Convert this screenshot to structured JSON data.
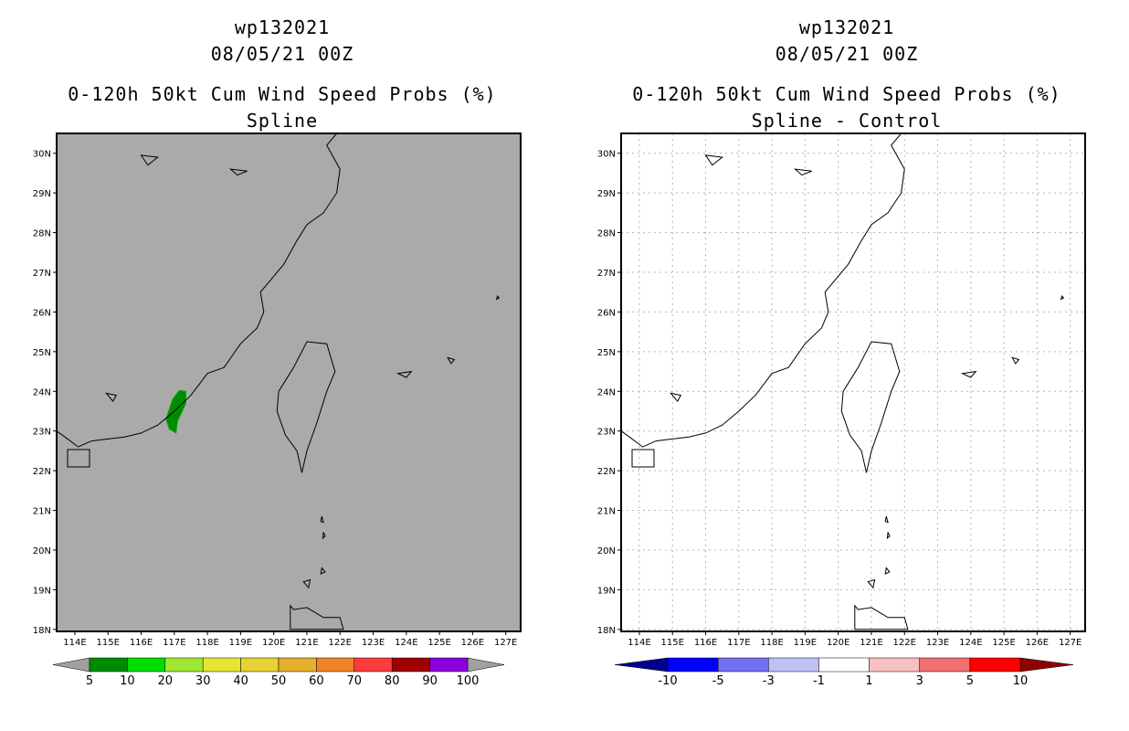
{
  "left": {
    "storm_id": "wp132021",
    "datetime": "08/05/21 00Z",
    "title": "0-120h 50kt Cum Wind Speed Probs (%)",
    "subtitle": "Spline",
    "lat_labels": [
      "30N",
      "29N",
      "28N",
      "27N",
      "26N",
      "25N",
      "24N",
      "23N",
      "22N",
      "21N",
      "20N",
      "19N",
      "18N"
    ],
    "lon_labels": [
      "114E",
      "115E",
      "116E",
      "117E",
      "118E",
      "119E",
      "120E",
      "121E",
      "122E",
      "123E",
      "124E",
      "125E",
      "126E",
      "127E"
    ],
    "colorbar": {
      "colors": [
        "#008c00",
        "#00dc00",
        "#a0e632",
        "#e6e632",
        "#e6d232",
        "#e6af2d",
        "#f08228",
        "#fa3c3c",
        "#a00000",
        "#8c00dc"
      ],
      "end_colors": [
        "#a0a0a0",
        "#a0a0a0"
      ],
      "labels": [
        "5",
        "10",
        "20",
        "30",
        "40",
        "50",
        "60",
        "70",
        "80",
        "90",
        "100"
      ]
    }
  },
  "right": {
    "storm_id": "wp132021",
    "datetime": "08/05/21 00Z",
    "title": "0-120h 50kt Cum Wind Speed Probs (%)",
    "subtitle": "Spline - Control",
    "lat_labels": [
      "30N",
      "29N",
      "28N",
      "27N",
      "26N",
      "25N",
      "24N",
      "23N",
      "22N",
      "21N",
      "20N",
      "19N",
      "18N"
    ],
    "lon_labels": [
      "114E",
      "115E",
      "116E",
      "117E",
      "118E",
      "119E",
      "120E",
      "121E",
      "122E",
      "123E",
      "124E",
      "125E",
      "126E",
      "127E"
    ],
    "colorbar": {
      "colors": [
        "#0000ff",
        "#7070f0",
        "#c0c0f8",
        "#ffffff",
        "#f8c0c0",
        "#f07070",
        "#ff0000"
      ],
      "end_colors": [
        "#000090",
        "#900000"
      ],
      "labels": [
        "-10",
        "-5",
        "-3",
        "-1",
        "1",
        "3",
        "5",
        "10"
      ]
    }
  },
  "colors": {
    "land_outline": "#000000",
    "left_background": "#aaaaaa",
    "probability_area": "#008c00",
    "grid": "#b4b4b4"
  }
}
